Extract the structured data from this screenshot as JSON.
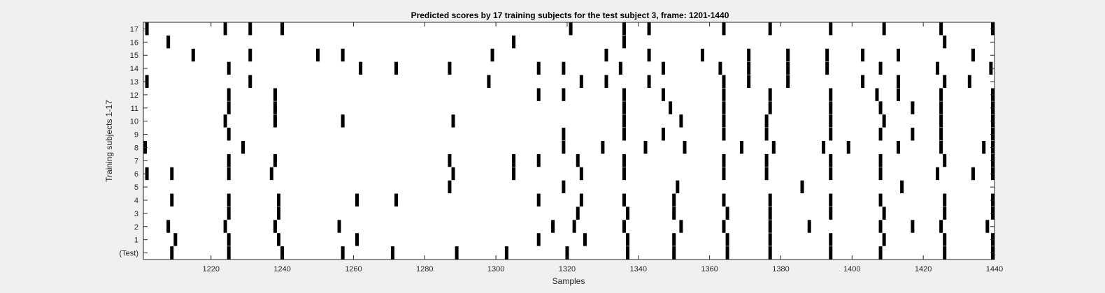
{
  "chart_data": {
    "type": "raster",
    "title": "Predicted scores by 17 training subjects for the test subject 3, frame: 1201-1440",
    "xlabel": "Samples",
    "ylabel": "Training subjects 1-17",
    "xlim": [
      1201,
      1440
    ],
    "x_ticks": [
      1220,
      1240,
      1260,
      1280,
      1300,
      1320,
      1340,
      1360,
      1380,
      1400,
      1420,
      1440
    ],
    "y_tick_labels": [
      "(Test)",
      "1",
      "2",
      "3",
      "4",
      "5",
      "6",
      "7",
      "8",
      "9",
      "10",
      "11",
      "12",
      "13",
      "14",
      "15",
      "16",
      "17"
    ],
    "grid": false,
    "mark_color": "#000000",
    "rows": [
      {
        "label": "17",
        "x": [
          1202,
          1224,
          1231,
          1240,
          1321,
          1336,
          1343,
          1364,
          1377,
          1394,
          1409,
          1425,
          1440
        ]
      },
      {
        "label": "16",
        "x": [
          1208,
          1305,
          1336,
          1426
        ]
      },
      {
        "label": "15",
        "x": [
          1215,
          1231,
          1250,
          1257,
          1299,
          1331,
          1343,
          1358,
          1371,
          1382,
          1393,
          1403,
          1413,
          1434
        ]
      },
      {
        "label": "14",
        "x": [
          1225,
          1262,
          1272,
          1287,
          1312,
          1319,
          1335,
          1347,
          1363,
          1371,
          1382,
          1393,
          1408,
          1424,
          1439
        ]
      },
      {
        "label": "13",
        "x": [
          1202,
          1231,
          1298,
          1324,
          1331,
          1343,
          1364,
          1371,
          1382,
          1403,
          1413,
          1426,
          1433
        ]
      },
      {
        "label": "12",
        "x": [
          1225,
          1238,
          1312,
          1319,
          1336,
          1347,
          1364,
          1377,
          1394,
          1407,
          1413,
          1425,
          1440
        ]
      },
      {
        "label": "11",
        "x": [
          1225,
          1238,
          1336,
          1349,
          1364,
          1377,
          1394,
          1408,
          1417,
          1425,
          1440
        ]
      },
      {
        "label": "10",
        "x": [
          1224,
          1238,
          1257,
          1288,
          1336,
          1352,
          1364,
          1376,
          1394,
          1409,
          1425,
          1440
        ]
      },
      {
        "label": "9",
        "x": [
          1225,
          1319,
          1336,
          1347,
          1364,
          1376,
          1394,
          1408,
          1417,
          1425,
          1440
        ]
      },
      {
        "label": "8",
        "x": [
          1201,
          1229,
          1319,
          1330,
          1342,
          1353,
          1369,
          1378,
          1392,
          1399,
          1413,
          1425,
          1437,
          1440
        ]
      },
      {
        "label": "7",
        "x": [
          1225,
          1238,
          1287,
          1305,
          1312,
          1323,
          1336,
          1364,
          1376,
          1394,
          1408,
          1426,
          1440
        ]
      },
      {
        "label": "6",
        "x": [
          1202,
          1209,
          1225,
          1237,
          1288,
          1305,
          1324,
          1336,
          1364,
          1376,
          1394,
          1408,
          1424,
          1434,
          1440
        ]
      },
      {
        "label": "5",
        "x": [
          1287,
          1319,
          1351,
          1386,
          1414
        ]
      },
      {
        "label": "4",
        "x": [
          1209,
          1225,
          1239,
          1261,
          1272,
          1312,
          1324,
          1336,
          1350,
          1364,
          1377,
          1394,
          1408,
          1426,
          1440
        ]
      },
      {
        "label": "3",
        "x": [
          1225,
          1239,
          1323,
          1337,
          1350,
          1365,
          1377,
          1394,
          1409,
          1426,
          1441
        ]
      },
      {
        "label": "2",
        "x": [
          1208,
          1224,
          1238,
          1256,
          1316,
          1322,
          1336,
          1352,
          1364,
          1377,
          1388,
          1408,
          1417,
          1425,
          1438
        ]
      },
      {
        "label": "1",
        "x": [
          1210,
          1225,
          1239,
          1261,
          1312,
          1325,
          1337,
          1350,
          1365,
          1377,
          1394,
          1409,
          1426,
          1440
        ]
      },
      {
        "label": "(Test)",
        "x": [
          1209,
          1225,
          1240,
          1257,
          1271,
          1289,
          1303,
          1320,
          1337,
          1350,
          1365,
          1377,
          1394,
          1408,
          1426,
          1441
        ]
      }
    ]
  }
}
